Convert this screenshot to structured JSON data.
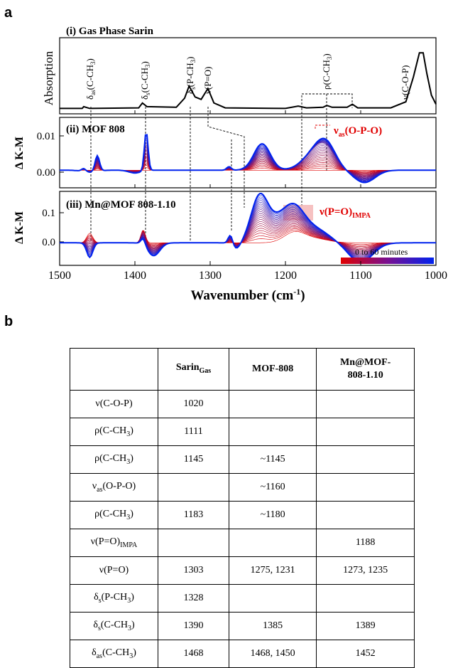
{
  "panel_a_letter": "a",
  "panel_b_letter": "b",
  "chart_data": {
    "type": "line",
    "xlabel": "Wavenumber (cm⁻¹)",
    "xlim": [
      1500,
      1000
    ],
    "x_ticks": [
      "1500",
      "1400",
      "1300",
      "1200",
      "1100",
      "1000"
    ],
    "x_tick_values": [
      1500,
      1400,
      1300,
      1200,
      1100,
      1000
    ],
    "panels": [
      {
        "title": "(i) Gas Phase Sarin",
        "ylabel": "Absorption",
        "yticks": [],
        "series": [
          {
            "color": "#000000",
            "points": [
              [
                1500,
                0.03
              ],
              [
                1470,
                0.03
              ],
              [
                1468,
                0.06
              ],
              [
                1460,
                0.03
              ],
              [
                1395,
                0.04
              ],
              [
                1390,
                0.12
              ],
              [
                1384,
                0.06
              ],
              [
                1345,
                0.05
              ],
              [
                1334,
                0.2
              ],
              [
                1328,
                0.4
              ],
              [
                1320,
                0.22
              ],
              [
                1312,
                0.18
              ],
              [
                1303,
                0.36
              ],
              [
                1295,
                0.12
              ],
              [
                1280,
                0.04
              ],
              [
                1200,
                0.03
              ],
              [
                1183,
                0.07
              ],
              [
                1172,
                0.04
              ],
              [
                1150,
                0.05
              ],
              [
                1145,
                0.08
              ],
              [
                1138,
                0.05
              ],
              [
                1118,
                0.05
              ],
              [
                1111,
                0.1
              ],
              [
                1104,
                0.04
              ],
              [
                1060,
                0.04
              ],
              [
                1040,
                0.14
              ],
              [
                1030,
                0.55
              ],
              [
                1022,
                0.95
              ],
              [
                1017,
                0.95
              ],
              [
                1012,
                0.6
              ],
              [
                1006,
                0.25
              ],
              [
                1000,
                0.1
              ]
            ]
          }
        ],
        "annotations": [
          "δas(C-CH3)",
          "δs(C-CH3)",
          "δs(P-CH3)",
          "ν(P=O)",
          "ρ(C-CH3)",
          "ν(C-O-P)"
        ]
      },
      {
        "title": "(ii) MOF 808",
        "ylabel": "Δ K-M",
        "ylim": [
          -0.005,
          0.015
        ],
        "yticks": [
          "0.01",
          "0.00"
        ],
        "ytick_values": [
          0.01,
          0.0
        ],
        "annotation": "νas(O-P-O)"
      },
      {
        "title": "(iii) Mn@MOF 808-1.10",
        "ylabel": "Δ K-M",
        "ylim": [
          -0.07,
          0.16
        ],
        "yticks": [
          "0.1",
          "0.0"
        ],
        "ytick_values": [
          0.1,
          0.0
        ],
        "annotation": "ν(P=O)IMPA",
        "time_legend": "0 to 60 minutes"
      }
    ],
    "colors": {
      "early": "#e00000",
      "late": "#0022ee",
      "highlight": "#f4b6b6"
    }
  },
  "table": {
    "headers": [
      "",
      "SarinGas",
      "MOF-808",
      "Mn@MOF-808-1.10"
    ],
    "rows": [
      [
        "ν(C-O-P)",
        "1020",
        "",
        ""
      ],
      [
        "ρ(C-CH3)",
        "1111",
        "",
        ""
      ],
      [
        "ρ(C-CH3)",
        "1145",
        "~1145",
        ""
      ],
      [
        "νas(O-P-O)",
        "",
        "~1160",
        ""
      ],
      [
        "ρ(C-CH3)",
        "1183",
        "~1180",
        ""
      ],
      [
        "ν(P=O)IMPA",
        "",
        "",
        "1188"
      ],
      [
        "ν(P=O)",
        "1303",
        "1275, 1231",
        "1273, 1235"
      ],
      [
        "δs(P-CH3)",
        "1328",
        "",
        ""
      ],
      [
        "δs(C-CH3)",
        "1390",
        "1385",
        "1389"
      ],
      [
        "δas(C-CH3)",
        "1468",
        "1468, 1450",
        "1452"
      ]
    ]
  }
}
